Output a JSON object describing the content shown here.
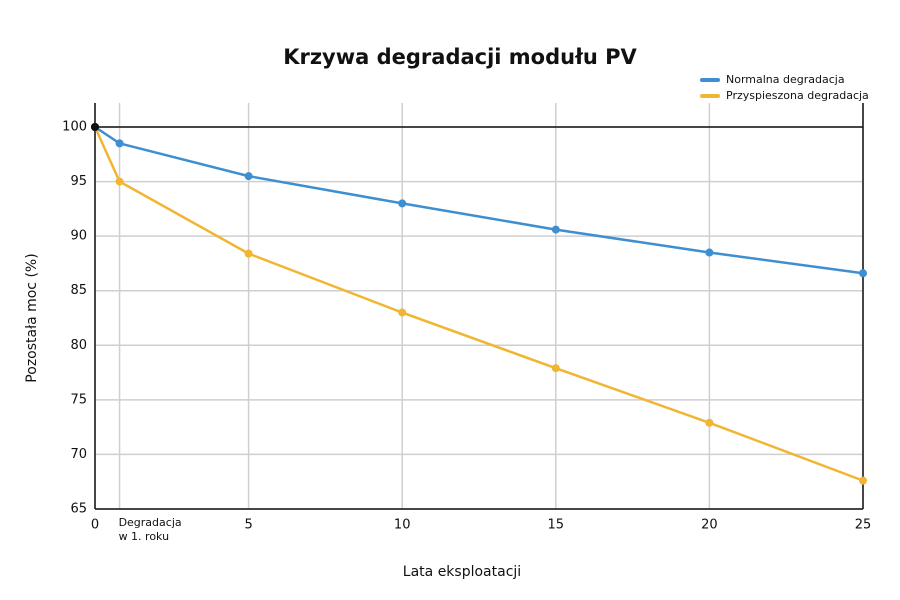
{
  "chart_data": {
    "type": "line",
    "title": "Krzywa degradacji modułu PV",
    "x_label": "Lata eksploatacji",
    "y_label": "Pozostała moc (%)",
    "x": [
      0,
      0.8,
      5,
      10,
      15,
      20,
      25
    ],
    "series": [
      {
        "name": "Normalna degradacja",
        "color": "#3d8fd1",
        "values": [
          100,
          98.5,
          95.5,
          93,
          90.6,
          88.5,
          86.6
        ]
      },
      {
        "name": "Przyspieszona degradacja",
        "color": "#f2b531",
        "values": [
          100,
          95,
          88.4,
          83,
          77.9,
          72.9,
          67.6
        ]
      }
    ],
    "start_marker_color": "#111111",
    "xlim": [
      0,
      25
    ],
    "ylim": [
      65,
      102.2
    ],
    "xticks": [
      0,
      {
        "value": 0.8,
        "label": "Degradacja w 1. roku"
      },
      5,
      10,
      15,
      20,
      25
    ],
    "yticks": [
      65,
      70,
      75,
      80,
      85,
      90,
      95,
      100
    ],
    "grid": true,
    "legend": "top-right"
  }
}
